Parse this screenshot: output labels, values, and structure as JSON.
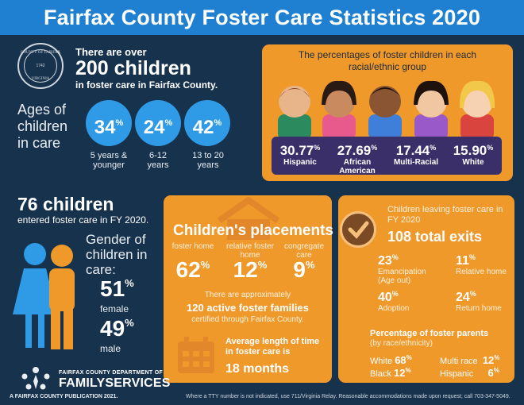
{
  "header": {
    "title": "Fairfax County Foster Care Statistics 2020"
  },
  "seal": {
    "top": "COUNTY OF FAIRFAX",
    "year": "1742",
    "bottom": "VIRGINIA"
  },
  "overview": {
    "line1": "There are over",
    "line2": "200 children",
    "line3": "in foster care in Fairfax County."
  },
  "ages": {
    "title": "Ages of children in care",
    "groups": [
      {
        "value": "34",
        "unit": "%",
        "label": "5 years & younger"
      },
      {
        "value": "24",
        "unit": "%",
        "label": "6-12 years"
      },
      {
        "value": "42",
        "unit": "%",
        "label": "13 to 20 years"
      }
    ]
  },
  "race": {
    "title": "The percentages of foster children in each racial/ethnic group",
    "groups": [
      {
        "value": "30.77",
        "unit": "%",
        "label": "Hispanic"
      },
      {
        "value": "27.69",
        "unit": "%",
        "label": "African American"
      },
      {
        "value": "17.44",
        "unit": "%",
        "label": "Multi-Racial"
      },
      {
        "value": "15.90",
        "unit": "%",
        "label": "White"
      }
    ]
  },
  "entered": {
    "big": "76 children",
    "sub": "entered foster care in FY 2020."
  },
  "gender": {
    "title": "Gender of children in care:",
    "female": {
      "value": "51",
      "unit": "%",
      "label": "female"
    },
    "male": {
      "value": "49",
      "unit": "%",
      "label": "male"
    }
  },
  "placements": {
    "title": "Children's placements",
    "items": [
      {
        "label": "foster home",
        "value": "62",
        "unit": "%"
      },
      {
        "label": "relative foster home",
        "value": "12",
        "unit": "%"
      },
      {
        "label": "congregate care",
        "value": "9",
        "unit": "%"
      }
    ],
    "approx_line1": "There are approximately",
    "approx_line2": "120 active foster families",
    "approx_line3": "certified through Fairfax County.",
    "avg_label": "Average length of time in foster care is",
    "avg_value": "18 months"
  },
  "exits": {
    "subtitle": "Children leaving foster care in FY 2020",
    "total": "108 total exits",
    "items": [
      {
        "value": "23",
        "unit": "%",
        "label": "Emancipation (Age out)"
      },
      {
        "value": "11",
        "unit": "%",
        "label": "Relative home"
      },
      {
        "value": "40",
        "unit": "%",
        "label": "Adoption"
      },
      {
        "value": "24",
        "unit": "%",
        "label": "Return home"
      }
    ],
    "fp_title": "Percentage of foster parents",
    "fp_sub": "(by race/ethnicity)",
    "fp": [
      {
        "label": "White",
        "value": "68",
        "unit": "%"
      },
      {
        "label": "Multi race",
        "value": "12",
        "unit": "%"
      },
      {
        "label": "Black",
        "value": "12",
        "unit": "%"
      },
      {
        "label": "Hispanic",
        "value": "6",
        "unit": "%"
      }
    ]
  },
  "logo": {
    "dept": "FAIRFAX COUNTY DEPARTMENT OF",
    "name": "FAMILYSERVICES"
  },
  "footer": {
    "left": "A FAIRFAX COUNTY PUBLICATION 2021.",
    "right": "Where a TTY number is not indicated, use 711/Virginia Relay. Reasonable accommodations made upon request; call 703-347-5049."
  },
  "colors": {
    "header": "#1f7fd0",
    "background": "#17324d",
    "panel": "#f0992b",
    "age_circle": "#2f9be6",
    "race_bar": "#3a2f68"
  }
}
